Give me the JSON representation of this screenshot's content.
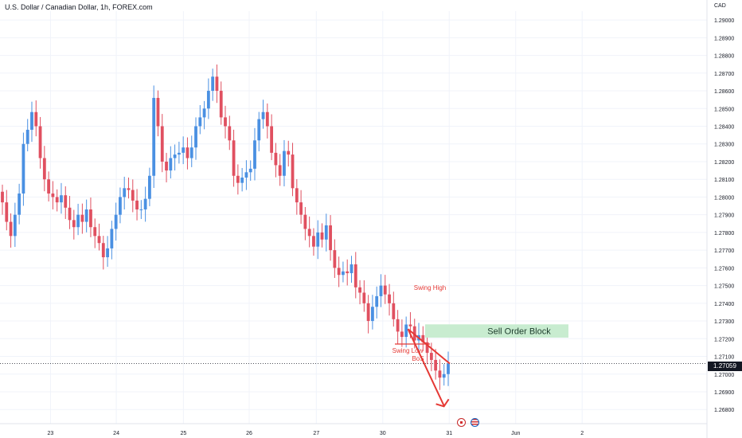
{
  "header": {
    "title": "U.S. Dollar / Canadian Dollar, 1h, FOREX.com"
  },
  "currency_label": "CAD",
  "current_price_label": "1.27059",
  "events": {
    "icons": [
      "canada-flag-icon",
      "usa-flag-icon"
    ]
  },
  "colors": {
    "up": "#4a90e2",
    "down": "#e05060",
    "zone": "#c8ecd0",
    "annotation": "#e53935",
    "grid": "#f0f3fa"
  },
  "chart_data": {
    "type": "candlestick",
    "x_ticks": [
      {
        "label": "23",
        "x": 0.76
      },
      {
        "label": "24",
        "x": 1.75
      },
      {
        "label": "25",
        "x": 2.76
      },
      {
        "label": "26",
        "x": 3.75
      },
      {
        "label": "27",
        "x": 4.76
      },
      {
        "label": "30",
        "x": 5.76
      },
      {
        "label": "31",
        "x": 6.76
      },
      {
        "label": "Jun",
        "x": 7.76
      },
      {
        "label": "2",
        "x": 8.76
      }
    ],
    "y_ticks": [
      "1.29000",
      "1.28900",
      "1.28800",
      "1.28700",
      "1.28600",
      "1.28500",
      "1.28400",
      "1.28300",
      "1.28200",
      "1.28100",
      "1.28000",
      "1.27900",
      "1.27800",
      "1.27700",
      "1.27600",
      "1.27500",
      "1.27400",
      "1.27300",
      "1.27200",
      "1.27100",
      "1.27000",
      "1.26900",
      "1.26800"
    ],
    "ylim": [
      1.2672,
      1.2905
    ],
    "xlim": [
      0,
      10
    ],
    "current_price": 1.27059,
    "closes": [
      1.2797,
      1.2786,
      1.2778,
      1.279,
      1.2802,
      1.283,
      1.2838,
      1.2848,
      1.284,
      1.2822,
      1.281,
      1.2802,
      1.28,
      1.2797,
      1.2801,
      1.2794,
      1.2787,
      1.2783,
      1.279,
      1.2786,
      1.2793,
      1.2783,
      1.2778,
      1.2774,
      1.2766,
      1.2771,
      1.2782,
      1.279,
      1.28,
      1.2805,
      1.2804,
      1.2798,
      1.2793,
      1.2793,
      1.2799,
      1.2812,
      1.2856,
      1.284,
      1.282,
      1.2815,
      1.2822,
      1.2824,
      1.2825,
      1.2828,
      1.2822,
      1.2828,
      1.284,
      1.2845,
      1.285,
      1.286,
      1.2868,
      1.286,
      1.2845,
      1.284,
      1.2832,
      1.2812,
      1.2808,
      1.2811,
      1.2814,
      1.2816,
      1.2832,
      1.2844,
      1.2848,
      1.284,
      1.2825,
      1.2818,
      1.2812,
      1.2826,
      1.2824,
      1.2805,
      1.2797,
      1.279,
      1.2782,
      1.2778,
      1.2772,
      1.278,
      1.2776,
      1.2784,
      1.277,
      1.276,
      1.2756,
      1.2758,
      1.2757,
      1.2762,
      1.2749,
      1.2746,
      1.274,
      1.273,
      1.2738,
      1.2744,
      1.275,
      1.2745,
      1.274,
      1.2731,
      1.2724,
      1.2721,
      1.2728,
      1.2727,
      1.2719,
      1.2722,
      1.2718,
      1.2712,
      1.2708,
      1.2702,
      1.2698,
      1.27,
      1.2706
    ],
    "annotations": [
      {
        "type": "text",
        "text": "Swing High"
      },
      {
        "type": "text",
        "text": "Swing Low"
      },
      {
        "type": "text",
        "text": "BoS"
      },
      {
        "type": "zone",
        "text": "Sell Order Block",
        "y_range": [
          1.27206,
          1.27281
        ]
      }
    ],
    "projection_path": [
      [
        6.14,
        1.27254
      ],
      [
        6.68,
        1.26822
      ]
    ]
  }
}
